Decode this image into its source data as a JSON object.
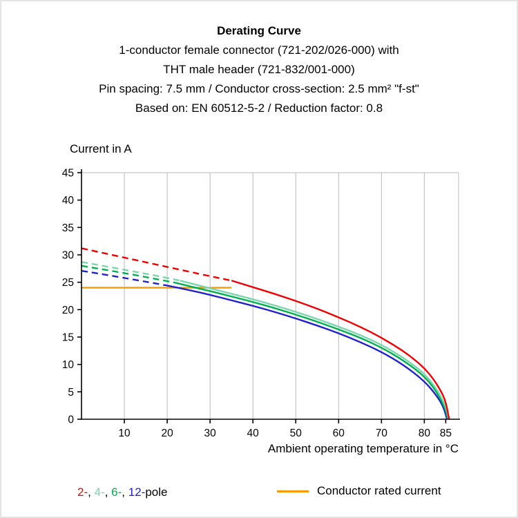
{
  "header": {
    "title": "Derating Curve",
    "subtitle_lines": [
      "1-conductor female connector (721-202/026-000) with",
      "THT male header (721-832/001-000)",
      "Pin spacing: 7.5 mm / Conductor cross-section: 2.5 mm² \"f-st\"",
      "Based on: EN 60512-5-2 / Reduction factor: 0.8"
    ]
  },
  "chart_data": {
    "type": "line",
    "title": "Derating Curve",
    "xlabel": "Ambient operating temperature in °C",
    "ylabel": "Current in A",
    "xlim": [
      0,
      88
    ],
    "ylim": [
      0,
      45
    ],
    "x_ticks": [
      10,
      20,
      30,
      40,
      50,
      60,
      70,
      80,
      85
    ],
    "y_ticks": [
      0,
      5,
      10,
      15,
      20,
      25,
      30,
      35,
      40,
      45
    ],
    "grid": "vertical-only",
    "grid_color": "#b9b9b9",
    "series": [
      {
        "name": "12-pole",
        "color": "#2121cc",
        "dashed": [
          [
            0,
            27.1
          ],
          [
            10,
            25.8
          ],
          [
            20,
            24.4
          ]
        ],
        "solid": [
          [
            20,
            24.4
          ],
          [
            25,
            23.6
          ],
          [
            30,
            22.7
          ],
          [
            35,
            21.7
          ],
          [
            40,
            20.7
          ],
          [
            45,
            19.6
          ],
          [
            50,
            18.4
          ],
          [
            55,
            17.1
          ],
          [
            60,
            15.7
          ],
          [
            65,
            14.1
          ],
          [
            70,
            12.3
          ],
          [
            75,
            10.0
          ],
          [
            80,
            7.0
          ],
          [
            83,
            4.2
          ],
          [
            84.5,
            2.2
          ],
          [
            85.3,
            0
          ]
        ]
      },
      {
        "name": "6-pole",
        "color": "#00b050",
        "dashed": [
          [
            0,
            28.0
          ],
          [
            10,
            26.7
          ],
          [
            20,
            25.2
          ],
          [
            22,
            24.9
          ]
        ],
        "solid": [
          [
            22,
            24.9
          ],
          [
            25,
            24.3
          ],
          [
            30,
            23.4
          ],
          [
            35,
            22.4
          ],
          [
            40,
            21.4
          ],
          [
            45,
            20.3
          ],
          [
            50,
            19.1
          ],
          [
            55,
            17.8
          ],
          [
            60,
            16.4
          ],
          [
            65,
            14.9
          ],
          [
            70,
            13.1
          ],
          [
            75,
            10.8
          ],
          [
            80,
            7.9
          ],
          [
            83,
            4.9
          ],
          [
            85,
            1.8
          ],
          [
            85.5,
            0
          ]
        ]
      },
      {
        "name": "4-pole",
        "color": "#79d6aa",
        "dashed": [
          [
            0,
            28.7
          ],
          [
            10,
            27.3
          ],
          [
            20,
            25.8
          ],
          [
            23,
            25.3
          ]
        ],
        "solid": [
          [
            23,
            25.3
          ],
          [
            25,
            24.9
          ],
          [
            30,
            23.9
          ],
          [
            35,
            22.9
          ],
          [
            40,
            21.9
          ],
          [
            45,
            20.8
          ],
          [
            50,
            19.6
          ],
          [
            55,
            18.3
          ],
          [
            60,
            16.9
          ],
          [
            65,
            15.4
          ],
          [
            70,
            13.6
          ],
          [
            75,
            11.3
          ],
          [
            80,
            8.4
          ],
          [
            83,
            5.4
          ],
          [
            85,
            2.4
          ],
          [
            85.7,
            0
          ]
        ]
      },
      {
        "name": "2-pole",
        "color": "#f00000",
        "dashed": [
          [
            0,
            31.2
          ],
          [
            10,
            29.5
          ],
          [
            20,
            27.8
          ],
          [
            30,
            26.1
          ],
          [
            35,
            25.3
          ]
        ],
        "solid": [
          [
            35,
            25.3
          ],
          [
            40,
            24.1
          ],
          [
            45,
            22.9
          ],
          [
            50,
            21.6
          ],
          [
            55,
            20.2
          ],
          [
            60,
            18.6
          ],
          [
            65,
            16.9
          ],
          [
            70,
            14.9
          ],
          [
            75,
            12.5
          ],
          [
            78,
            10.7
          ],
          [
            80,
            9.3
          ],
          [
            82,
            7.5
          ],
          [
            84,
            5.0
          ],
          [
            85,
            3.2
          ],
          [
            85.8,
            0
          ]
        ]
      }
    ],
    "rated_current_line": {
      "name": "Conductor rated current",
      "color": "#f59b00",
      "value": 24,
      "x_range": [
        0,
        35
      ]
    }
  },
  "legend": {
    "pole_items": [
      {
        "label": "2-",
        "color": "#f00000"
      },
      {
        "label": "4-",
        "color": "#79d6aa"
      },
      {
        "label": "6-",
        "color": "#00b050"
      },
      {
        "label": "12-",
        "color": "#2121cc"
      }
    ],
    "separator": ", ",
    "suffix": "pole",
    "rated_label": "Conductor rated current",
    "rated_color": "#f59b00"
  }
}
